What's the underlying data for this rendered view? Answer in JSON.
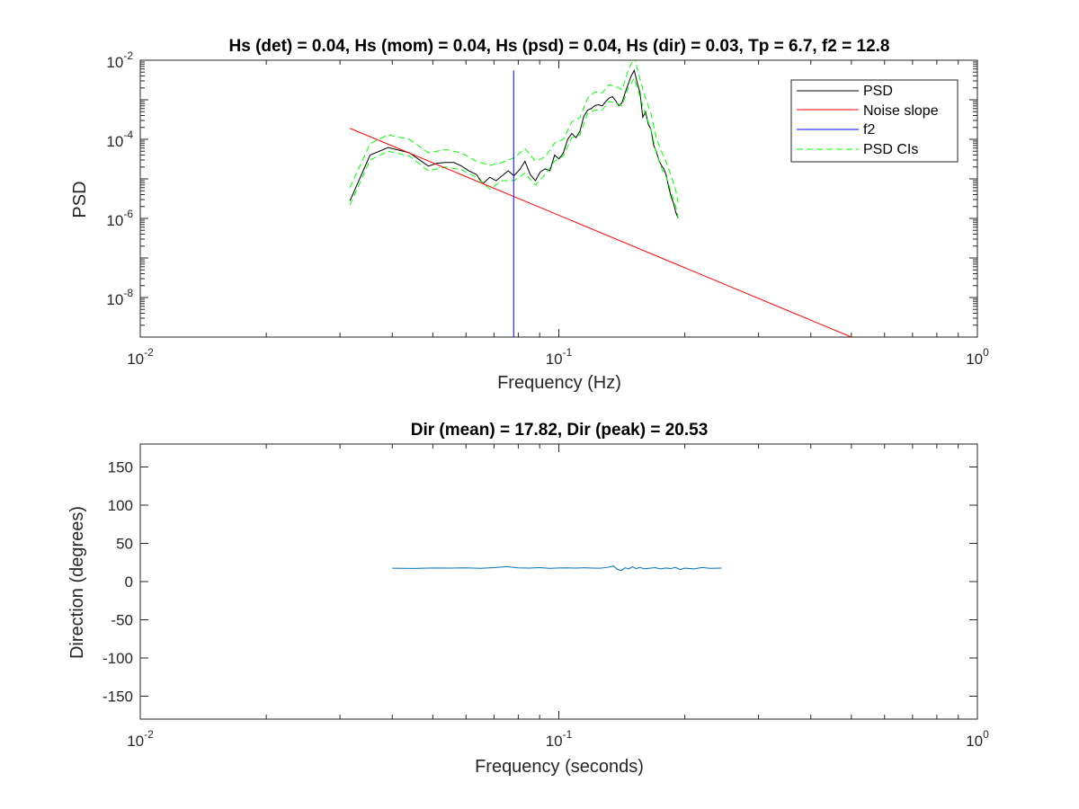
{
  "chart_data": [
    {
      "type": "line",
      "title": "Hs (det) = 0.04, Hs (mom) = 0.04, Hs (psd) = 0.04, Hs (dir) = 0.03, Tp = 6.7, f2 = 12.8",
      "xlabel": "Frequency (Hz)",
      "ylabel": "PSD",
      "xscale": "log",
      "yscale": "log",
      "xlim": [
        0.01,
        1
      ],
      "ylim": [
        1e-09,
        0.01
      ],
      "grid": false,
      "legend_position": "top-right",
      "x_ticks": [
        {
          "value": 0.01,
          "base": "10",
          "exp": "-2"
        },
        {
          "value": 0.1,
          "base": "10",
          "exp": "-1"
        },
        {
          "value": 1,
          "base": "10",
          "exp": "0"
        }
      ],
      "y_ticks": [
        {
          "value": 1e-08,
          "base": "10",
          "exp": "-8"
        },
        {
          "value": 1e-06,
          "base": "10",
          "exp": "-6"
        },
        {
          "value": 0.0001,
          "base": "10",
          "exp": "-4"
        },
        {
          "value": 0.01,
          "base": "10",
          "exp": "-2"
        }
      ],
      "series": [
        {
          "name": "PSD",
          "color": "#000000",
          "dash": "solid",
          "x": [
            0.0317,
            0.0354,
            0.0391,
            0.0439,
            0.0488,
            0.0513,
            0.0537,
            0.0562,
            0.0586,
            0.061,
            0.0635,
            0.0659,
            0.0684,
            0.0708,
            0.0732,
            0.0757,
            0.0781,
            0.0806,
            0.083,
            0.0854,
            0.0879,
            0.0903,
            0.0928,
            0.0952,
            0.0977,
            0.1001,
            0.1025,
            0.105,
            0.1074,
            0.1099,
            0.1123,
            0.1147,
            0.1172,
            0.1196,
            0.1221,
            0.1245,
            0.127,
            0.1294,
            0.1318,
            0.1343,
            0.1367,
            0.1392,
            0.1416,
            0.144,
            0.1465,
            0.1489,
            0.1514,
            0.1538,
            0.1563,
            0.1587,
            0.1611,
            0.1636,
            0.166,
            0.1685,
            0.1709,
            0.1733,
            0.1758,
            0.1782,
            0.1807,
            0.1831,
            0.1855,
            0.188,
            0.1904,
            0.1929
          ],
          "y": [
            2.8e-06,
            4e-05,
            6.2e-05,
            4.6e-05,
            2.1e-05,
            2.5e-05,
            2.6e-05,
            2.6e-05,
            2.1e-05,
            1.6e-05,
            1.3e-05,
            7.6e-06,
            1.1e-05,
            9e-06,
            1.2e-05,
            1.6e-05,
            1.2e-05,
            1.7e-05,
            2.8e-05,
            1.3e-05,
            9e-06,
            1.5e-05,
            1.8e-05,
            1.6e-05,
            4e-05,
            3.2e-05,
            4.5e-05,
            0.0001,
            0.00014,
            0.00011,
            0.00016,
            0.00038,
            0.00055,
            0.0006,
            0.00072,
            0.00075,
            0.0007,
            0.0009,
            0.0011,
            0.0012,
            0.00095,
            0.0007,
            0.00085,
            0.0015,
            0.0025,
            0.004,
            0.0055,
            0.0028,
            0.0015,
            0.00036,
            0.0005,
            0.00024,
            0.00018,
            7e-05,
            5e-05,
            3e-05,
            2.2e-05,
            1.8e-05,
            1.2e-05,
            6e-06,
            3.5e-06,
            2.4e-06,
            1.4e-06,
            1e-06
          ]
        },
        {
          "name": "Noise slope",
          "color": "#ff0000",
          "dash": "solid",
          "x": [
            0.0317,
            0.5
          ],
          "y": [
            0.00019,
            1e-09
          ]
        },
        {
          "name": "f2",
          "color": "#0000ff",
          "dash": "solid",
          "x": [
            0.078,
            0.078
          ],
          "y": [
            1e-09,
            0.0055
          ]
        },
        {
          "name": "PSD CIs",
          "color": "#00ff00",
          "dash": "dashed",
          "x": [
            0.0317,
            0.0354,
            0.0391,
            0.0439,
            0.0488,
            0.0537,
            0.0586,
            0.0635,
            0.0684,
            0.0732,
            0.0781,
            0.083,
            0.0879,
            0.0928,
            0.0977,
            0.1025,
            0.1074,
            0.1123,
            0.1172,
            0.1221,
            0.127,
            0.1318,
            0.1367,
            0.1416,
            0.1465,
            0.1514,
            0.1563,
            0.1611,
            0.166,
            0.1709,
            0.1758,
            0.1807,
            0.1855,
            0.1904,
            0.1929
          ],
          "y": [
            6e-06,
            7.8e-05,
            0.00013,
            0.0001,
            4.6e-05,
            5.5e-05,
            4.5e-05,
            2.8e-05,
            2.2e-05,
            2.6e-05,
            3.4e-05,
            5.8e-05,
            2.8e-05,
            3.6e-05,
            8e-05,
            0.0001,
            0.00028,
            0.00035,
            0.0011,
            0.0016,
            0.0015,
            0.0024,
            0.0022,
            0.0018,
            0.0055,
            0.012,
            0.0033,
            0.0011,
            0.00045,
            0.00011,
            5e-05,
            2.6e-05,
            1.2e-05,
            5e-06,
            2.5e-06
          ]
        },
        {
          "name": "",
          "color": "#00ff00",
          "dash": "dashed",
          "x": [
            0.0317,
            0.0354,
            0.0391,
            0.0439,
            0.0488,
            0.0537,
            0.0586,
            0.0635,
            0.0684,
            0.0732,
            0.0781,
            0.083,
            0.0879,
            0.0928,
            0.0977,
            0.1025,
            0.1074,
            0.1123,
            0.1172,
            0.1221,
            0.127,
            0.1318,
            0.1367,
            0.1416,
            0.1465,
            0.1514,
            0.1563,
            0.1611,
            0.166,
            0.1709,
            0.1758,
            0.1807,
            0.1855,
            0.1904,
            0.1929
          ],
          "y": [
            2.2e-06,
            3e-05,
            5e-05,
            3.8e-05,
            1.6e-05,
            2e-05,
            1.7e-05,
            1.1e-05,
            5.5e-06,
            9e-06,
            9e-06,
            1.4e-05,
            7e-06,
            1.3e-05,
            2.8e-05,
            3.8e-05,
            0.00011,
            0.00013,
            0.00045,
            0.00055,
            0.00055,
            0.0009,
            0.00085,
            0.0007,
            0.002,
            0.0035,
            0.0012,
            0.00042,
            0.00018,
            4.5e-05,
            1.9e-05,
            1.1e-05,
            4.5e-06,
            2e-06,
            1e-06
          ]
        }
      ]
    },
    {
      "type": "line",
      "title": "Dir (mean) = 17.82, Dir (peak) = 20.53",
      "xlabel": "Frequency (seconds)",
      "ylabel": "Direction (degrees)",
      "xscale": "log",
      "yscale": "linear",
      "xlim": [
        0.01,
        1
      ],
      "ylim": [
        -180,
        180
      ],
      "grid": false,
      "x_ticks": [
        {
          "value": 0.01,
          "base": "10",
          "exp": "-2"
        },
        {
          "value": 0.1,
          "base": "10",
          "exp": "-1"
        },
        {
          "value": 1,
          "base": "10",
          "exp": "0"
        }
      ],
      "y_ticks": [
        {
          "value": -150,
          "label": "-150"
        },
        {
          "value": -100,
          "label": "-100"
        },
        {
          "value": -50,
          "label": "-50"
        },
        {
          "value": 0,
          "label": "0"
        },
        {
          "value": 50,
          "label": "50"
        },
        {
          "value": 100,
          "label": "100"
        },
        {
          "value": 150,
          "label": "150"
        }
      ],
      "series": [
        {
          "name": "",
          "color": "#0072bd",
          "dash": "solid",
          "x": [
            0.04,
            0.045,
            0.05,
            0.055,
            0.06,
            0.065,
            0.07,
            0.075,
            0.08,
            0.085,
            0.09,
            0.095,
            0.1,
            0.105,
            0.11,
            0.115,
            0.12,
            0.125,
            0.13,
            0.135,
            0.138,
            0.141,
            0.144,
            0.147,
            0.15,
            0.153,
            0.156,
            0.16,
            0.165,
            0.17,
            0.175,
            0.18,
            0.185,
            0.19,
            0.195,
            0.2,
            0.21,
            0.22,
            0.23,
            0.245
          ],
          "y": [
            17.5,
            17.2,
            17.8,
            17.6,
            18.0,
            17.4,
            18.2,
            19.5,
            18.0,
            17.6,
            18.2,
            17.4,
            17.8,
            18.0,
            17.6,
            18.1,
            17.7,
            17.5,
            18.3,
            20.5,
            16.0,
            14.5,
            18.0,
            16.5,
            19.5,
            17.0,
            18.5,
            16.8,
            17.5,
            18.2,
            16.6,
            17.8,
            17.0,
            18.5,
            15.8,
            17.6,
            16.7,
            18.4,
            17.4,
            17.7
          ]
        }
      ]
    }
  ]
}
